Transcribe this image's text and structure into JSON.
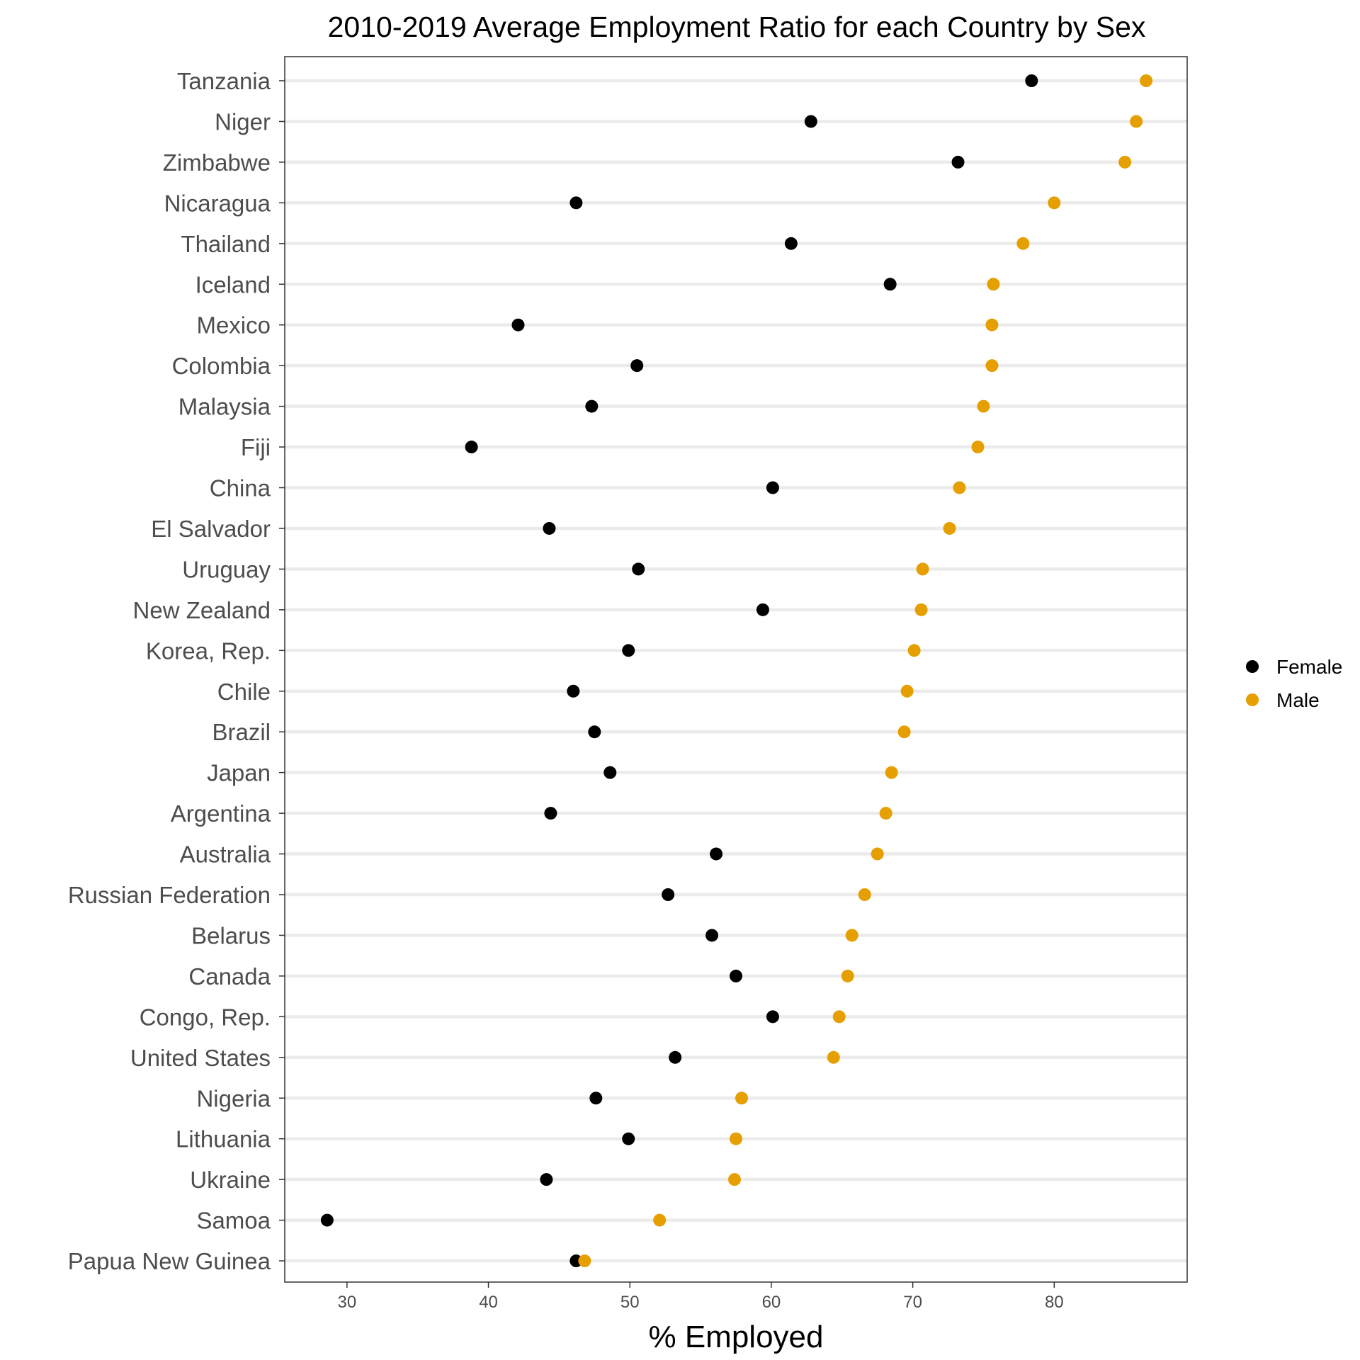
{
  "chart_data": {
    "type": "scatter",
    "title": "2010-2019 Average Employment Ratio for each Country by Sex",
    "xlabel": "% Employed",
    "ylabel": "",
    "xlim": [
      25.6,
      89.4
    ],
    "xticks": [
      30,
      40,
      50,
      60,
      70,
      80
    ],
    "grid": "horizontal major lines only",
    "legend_position": "right",
    "categories": [
      "Tanzania",
      "Niger",
      "Zimbabwe",
      "Nicaragua",
      "Thailand",
      "Iceland",
      "Mexico",
      "Colombia",
      "Malaysia",
      "Fiji",
      "China",
      "El Salvador",
      "Uruguay",
      "New Zealand",
      "Korea, Rep.",
      "Chile",
      "Brazil",
      "Japan",
      "Argentina",
      "Australia",
      "Russian Federation",
      "Belarus",
      "Canada",
      "Congo, Rep.",
      "United States",
      "Nigeria",
      "Lithuania",
      "Ukraine",
      "Samoa",
      "Papua New Guinea"
    ],
    "series": [
      {
        "name": "Female",
        "color": "#000000",
        "values": [
          78.4,
          62.8,
          73.2,
          46.2,
          61.4,
          68.4,
          42.1,
          50.5,
          47.3,
          38.8,
          60.1,
          44.3,
          50.6,
          59.4,
          49.9,
          46.0,
          47.5,
          48.6,
          44.4,
          56.1,
          52.7,
          55.8,
          57.5,
          60.1,
          53.2,
          47.6,
          49.9,
          44.1,
          28.6,
          46.2
        ]
      },
      {
        "name": "Male",
        "color": "#E69F00",
        "values": [
          86.5,
          85.8,
          85.0,
          80.0,
          77.8,
          75.7,
          75.6,
          75.6,
          75.0,
          74.6,
          73.3,
          72.6,
          70.7,
          70.6,
          70.1,
          69.6,
          69.4,
          68.5,
          68.1,
          67.5,
          66.6,
          65.7,
          65.4,
          64.8,
          64.4,
          57.9,
          57.5,
          57.4,
          52.1,
          46.8
        ]
      }
    ]
  }
}
